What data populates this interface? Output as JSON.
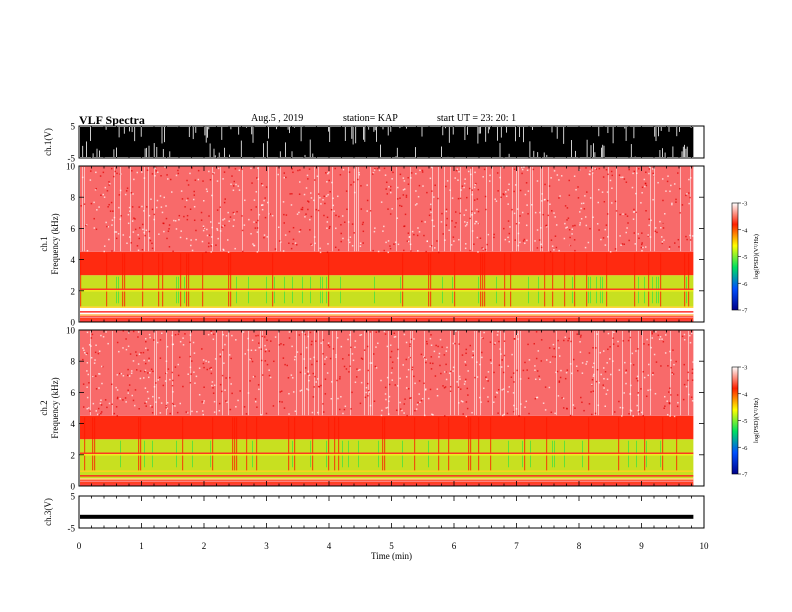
{
  "header": {
    "title": "VLF Spectra",
    "date": "Aug.5 , 2019",
    "station": "station= KAP",
    "start": "start UT = 23: 20: 1"
  },
  "chart_data": [
    {
      "type": "line",
      "panel": "ch1-waveform",
      "ylabel": "ch.1(V)",
      "ylim": [
        -5,
        5
      ],
      "yticks": [
        "5",
        "-5"
      ],
      "note": "dense black waveform filling the panel"
    },
    {
      "type": "heatmap",
      "panel": "ch1-spectrogram",
      "ylabel": "ch.1 Frequency (kHz)",
      "ylim": [
        0,
        10
      ],
      "yticks": [
        "0",
        "2",
        "4",
        "6",
        "8",
        "10"
      ],
      "colorbar": {
        "label": "log(PSD)(V²/Hz)",
        "range": [
          -7,
          -3
        ],
        "ticks": [
          "-3",
          "-4",
          "-5",
          "-6",
          "-7"
        ],
        "colors": [
          "#00008a",
          "#0050ff",
          "#00e060",
          "#ffff00",
          "#ff2000",
          "#ffffff"
        ]
      },
      "bands": [
        {
          "from_khz": 0.0,
          "to_khz": 0.5,
          "level": "red/yellow lines"
        },
        {
          "from_khz": 1.0,
          "to_khz": 3.0,
          "level": "yellow-green"
        },
        {
          "from_khz": 3.0,
          "to_khz": 4.5,
          "level": "red"
        },
        {
          "from_khz": 4.5,
          "to_khz": 10.0,
          "level": "pink/red"
        }
      ]
    },
    {
      "type": "heatmap",
      "panel": "ch2-spectrogram",
      "ylabel": "ch.2 Frequency (kHz)",
      "ylim": [
        0,
        10
      ],
      "yticks": [
        "0",
        "2",
        "4",
        "6",
        "8",
        "10"
      ],
      "colorbar": {
        "label": "log(PSD)(V²/Hz)",
        "range": [
          -7,
          -3
        ],
        "ticks": [
          "-3",
          "-4",
          "-5",
          "-6",
          "-7"
        ],
        "colors": [
          "#00008a",
          "#0050ff",
          "#00e060",
          "#ffff00",
          "#ff2000",
          "#ffffff"
        ]
      },
      "bands": [
        {
          "from_khz": 0.0,
          "to_khz": 0.5,
          "level": "red/yellow lines"
        },
        {
          "from_khz": 0.5,
          "to_khz": 3.0,
          "level": "yellow-green"
        },
        {
          "from_khz": 3.0,
          "to_khz": 4.5,
          "level": "red"
        },
        {
          "from_khz": 4.5,
          "to_khz": 10.0,
          "level": "pink/red"
        }
      ]
    },
    {
      "type": "line",
      "panel": "ch3-waveform",
      "ylabel": "ch.3(V)",
      "ylim": [
        -5,
        5
      ],
      "yticks": [
        "5",
        "-5"
      ],
      "value": -1.5
    }
  ],
  "xaxis": {
    "label": "Time (min)",
    "xlim": [
      0,
      10
    ],
    "ticks": [
      "0",
      "1",
      "2",
      "3",
      "4",
      "5",
      "6",
      "7",
      "8",
      "9",
      "10"
    ],
    "data_end": 9.83
  }
}
